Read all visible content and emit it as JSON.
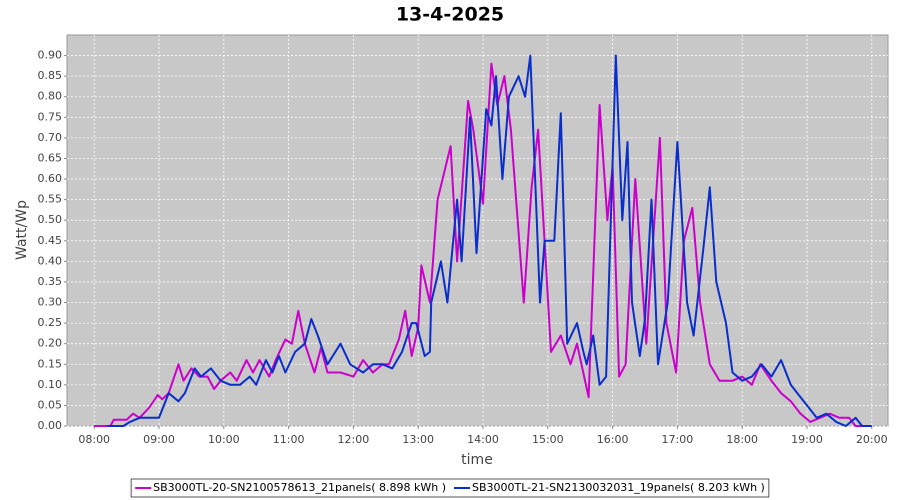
{
  "chart_data": {
    "type": "line",
    "title": "13-4-2025",
    "x_label": "time",
    "y_label": "Watt/Wp",
    "xlim": [
      7.58,
      20.25
    ],
    "ylim": [
      0,
      0.95
    ],
    "xticks": [
      {
        "value": 8,
        "label": "08:00"
      },
      {
        "value": 9,
        "label": "09:00"
      },
      {
        "value": 10,
        "label": "10:00"
      },
      {
        "value": 11,
        "label": "11:00"
      },
      {
        "value": 12,
        "label": "12:00"
      },
      {
        "value": 13,
        "label": "13:00"
      },
      {
        "value": 14,
        "label": "14:00"
      },
      {
        "value": 15,
        "label": "15:00"
      },
      {
        "value": 16,
        "label": "16:00"
      },
      {
        "value": 17,
        "label": "17:00"
      },
      {
        "value": 18,
        "label": "18:00"
      },
      {
        "value": 19,
        "label": "19:00"
      },
      {
        "value": 20,
        "label": "20:00"
      }
    ],
    "yticks": [
      {
        "value": 0,
        "label": "0.00"
      },
      0.05,
      {
        "value": 0.1,
        "label": "0.10"
      },
      0.15,
      {
        "value": 0.2,
        "label": "0.20"
      },
      0.25,
      {
        "value": 0.3,
        "label": "0.30"
      },
      0.35,
      {
        "value": 0.4,
        "label": "0.40"
      },
      0.45,
      {
        "value": 0.5,
        "label": "0.50"
      },
      0.55,
      {
        "value": 0.6,
        "label": "0.60"
      },
      0.65,
      {
        "value": 0.7,
        "label": "0.70"
      },
      0.75,
      {
        "value": 0.8,
        "label": "0.80"
      },
      0.85,
      {
        "value": 0.9,
        "label": "0.90"
      }
    ],
    "grid": true,
    "legend": "bottom",
    "series": [
      {
        "name": "SB3000TL-20-SN2100578613_21panels( 8.898 kWh )",
        "color": "#cc00cc",
        "x": [
          8.0,
          8.25,
          8.3,
          8.5,
          8.6,
          8.7,
          8.85,
          8.98,
          9.05,
          9.15,
          9.3,
          9.38,
          9.5,
          9.62,
          9.75,
          9.85,
          9.95,
          10.1,
          10.2,
          10.35,
          10.45,
          10.55,
          10.7,
          10.8,
          10.95,
          11.05,
          11.15,
          11.25,
          11.4,
          11.5,
          11.6,
          11.8,
          12.0,
          12.15,
          12.3,
          12.45,
          12.55,
          12.7,
          12.8,
          12.9,
          13.0,
          13.05,
          13.18,
          13.3,
          13.5,
          13.6,
          13.77,
          13.85,
          14.0,
          14.13,
          14.22,
          14.33,
          14.43,
          14.63,
          14.75,
          14.85,
          15.05,
          15.2,
          15.35,
          15.45,
          15.63,
          15.8,
          15.92,
          16.0,
          16.1,
          16.2,
          16.35,
          16.52,
          16.73,
          16.83,
          16.98,
          17.1,
          17.23,
          17.35,
          17.5,
          17.65,
          17.85,
          18.0,
          18.15,
          18.28,
          18.45,
          18.6,
          18.75,
          18.9,
          19.05,
          19.2,
          19.35,
          19.5,
          19.65,
          19.75,
          19.9
        ],
        "values": [
          0,
          0,
          0.015,
          0.015,
          0.03,
          0.02,
          0.045,
          0.075,
          0.065,
          0.08,
          0.15,
          0.11,
          0.14,
          0.12,
          0.12,
          0.09,
          0.11,
          0.13,
          0.11,
          0.16,
          0.13,
          0.16,
          0.12,
          0.16,
          0.21,
          0.2,
          0.28,
          0.2,
          0.13,
          0.19,
          0.13,
          0.13,
          0.12,
          0.16,
          0.13,
          0.15,
          0.15,
          0.21,
          0.28,
          0.17,
          0.24,
          0.39,
          0.3,
          0.55,
          0.68,
          0.4,
          0.79,
          0.72,
          0.54,
          0.88,
          0.78,
          0.85,
          0.72,
          0.3,
          0.58,
          0.72,
          0.18,
          0.22,
          0.15,
          0.2,
          0.07,
          0.78,
          0.5,
          0.63,
          0.12,
          0.15,
          0.6,
          0.2,
          0.7,
          0.25,
          0.13,
          0.45,
          0.53,
          0.3,
          0.15,
          0.11,
          0.11,
          0.12,
          0.1,
          0.15,
          0.11,
          0.08,
          0.06,
          0.03,
          0.01,
          0.02,
          0.03,
          0.02,
          0.02,
          0,
          0
        ]
      },
      {
        "name": "SB3000TL-21-SN2130032031_19panels( 8.203 kWh )",
        "color": "#0a2ecc",
        "x": [
          8.2,
          8.45,
          8.55,
          8.7,
          8.9,
          9.0,
          9.15,
          9.3,
          9.4,
          9.55,
          9.65,
          9.8,
          9.95,
          10.1,
          10.25,
          10.4,
          10.5,
          10.65,
          10.75,
          10.85,
          10.95,
          11.1,
          11.25,
          11.35,
          11.45,
          11.6,
          11.8,
          11.95,
          12.15,
          12.3,
          12.45,
          12.6,
          12.75,
          12.9,
          12.97,
          13.1,
          13.18,
          13.2,
          13.35,
          13.45,
          13.6,
          13.67,
          13.8,
          13.9,
          14.05,
          14.13,
          14.2,
          14.3,
          14.4,
          14.55,
          14.65,
          14.73,
          14.88,
          14.95,
          15.1,
          15.2,
          15.3,
          15.45,
          15.55,
          15.6,
          15.7,
          15.8,
          15.9,
          16.05,
          16.15,
          16.23,
          16.3,
          16.42,
          16.5,
          16.6,
          16.7,
          16.85,
          17.0,
          17.15,
          17.25,
          17.4,
          17.5,
          17.6,
          17.75,
          17.85,
          18.0,
          18.15,
          18.3,
          18.45,
          18.6,
          18.75,
          18.85,
          19.0,
          19.15,
          19.3,
          19.45,
          19.6,
          19.75,
          19.85,
          20.0
        ],
        "values": [
          0,
          0,
          0.01,
          0.02,
          0.02,
          0.02,
          0.08,
          0.06,
          0.08,
          0.14,
          0.12,
          0.14,
          0.11,
          0.1,
          0.1,
          0.12,
          0.1,
          0.16,
          0.13,
          0.17,
          0.13,
          0.18,
          0.2,
          0.26,
          0.22,
          0.15,
          0.2,
          0.15,
          0.13,
          0.15,
          0.15,
          0.14,
          0.18,
          0.25,
          0.25,
          0.17,
          0.18,
          0.3,
          0.4,
          0.3,
          0.55,
          0.4,
          0.75,
          0.42,
          0.77,
          0.73,
          0.85,
          0.6,
          0.8,
          0.85,
          0.8,
          0.9,
          0.3,
          0.45,
          0.45,
          0.76,
          0.2,
          0.25,
          0.18,
          0.15,
          0.22,
          0.1,
          0.12,
          0.9,
          0.5,
          0.69,
          0.3,
          0.17,
          0.26,
          0.55,
          0.15,
          0.3,
          0.69,
          0.3,
          0.22,
          0.43,
          0.58,
          0.35,
          0.25,
          0.13,
          0.11,
          0.12,
          0.15,
          0.12,
          0.16,
          0.1,
          0.08,
          0.05,
          0.02,
          0.03,
          0.01,
          0,
          0.02,
          0,
          0
        ]
      }
    ]
  }
}
